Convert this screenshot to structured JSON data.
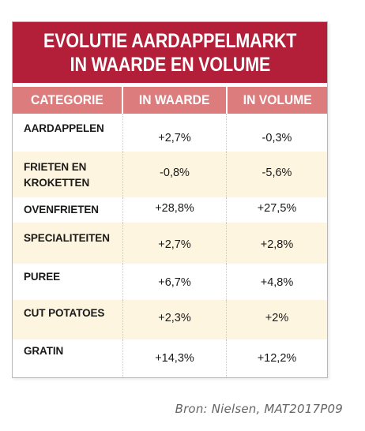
{
  "table": {
    "title_line1": "EVOLUTIE AARDAPPELMARKT",
    "title_line2": "IN WAARDE EN VOLUME",
    "headers": [
      "CATEGORIE",
      "IN WAARDE",
      "IN VOLUME"
    ],
    "rows": [
      {
        "category_line1": "AARDAPPELEN",
        "category_line2": "",
        "waarde": "+2,7%",
        "volume": "-0,3%"
      },
      {
        "category_line1": "FRIETEN EN",
        "category_line2": "KROKETTEN",
        "waarde": "-0,8%",
        "volume": "-5,6%"
      },
      {
        "category_line1": "OVENFRIETEN",
        "category_line2": "",
        "waarde": "+28,8%",
        "volume": "+27,5%"
      },
      {
        "category_line1": "SPECIALITEITEN",
        "category_line2": "",
        "waarde": "+2,7%",
        "volume": "+2,8%"
      },
      {
        "category_line1": "PUREE",
        "category_line2": "",
        "waarde": "+6,7%",
        "volume": "+4,8%"
      },
      {
        "category_line1": "CUT POTATOES",
        "category_line2": "",
        "waarde": "+2,3%",
        "volume": "+2%"
      },
      {
        "category_line1": "GRATIN",
        "category_line2": "",
        "waarde": "+14,3%",
        "volume": "+12,2%"
      }
    ],
    "colors": {
      "title_background": "#b31e38",
      "header_background": "#dd7c7d",
      "alternate_row_background": "#fdf5df"
    }
  },
  "source": "Bron: Nielsen, MAT2017P09"
}
